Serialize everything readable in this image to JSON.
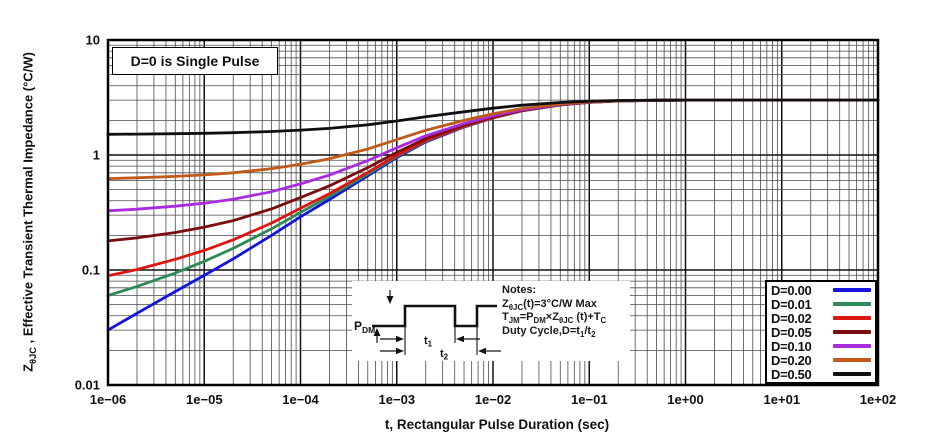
{
  "y_axis": {
    "prefix": "Z",
    "sub": "θJC",
    "rest": " , Effective Transient Thermal Impedance (°C/W)"
  },
  "x_axis": {
    "title": "t, Rectangular Pulse Duration (sec)"
  },
  "annotation": "D=0 is Single Pulse",
  "legend": {
    "items": [
      {
        "label": "D=0.00",
        "color": "#1414de"
      },
      {
        "label": "D=0.01",
        "color": "#2e8b57"
      },
      {
        "label": "D=0.02",
        "color": "#dd1512"
      },
      {
        "label": "D=0.05",
        "color": "#7a0e0e"
      },
      {
        "label": "D=0.10",
        "color": "#a92be0"
      },
      {
        "label": "D=0.20",
        "color": "#c05a1a"
      },
      {
        "label": "D=0.50",
        "color": "#101010"
      }
    ]
  },
  "notes": {
    "title": "Notes:",
    "l1a": "Z",
    "l1asub": "θJC",
    "l1b": "(t)=3°C/W Max",
    "l2a": "T",
    "l2asub": "JM",
    "l2b": "=P",
    "l2bsub": "DM",
    "l2c": "×Z",
    "l2csub": "θJC",
    "l2d": " (t)+T",
    "l2dsub": "C",
    "l3a": "Duty Cycle,D=t",
    "l3asub": "1",
    "l3b": "/t",
    "l3bsub": "2"
  },
  "waveform": {
    "p": "P",
    "p_sub": "DM",
    "t1": "t",
    "t1_sub": "1",
    "t2": "t",
    "t2_sub": "2"
  },
  "chart_data": {
    "type": "line",
    "title": "",
    "xlabel": "t, Rectangular Pulse Duration (sec)",
    "ylabel": "ZθJC, Effective Transient Thermal Impedance (°C/W)",
    "x_scale": "log",
    "y_scale": "log",
    "xlim": [
      1e-06,
      100
    ],
    "ylim": [
      0.01,
      10
    ],
    "x_log_range": [
      -6,
      2
    ],
    "y_log_range": [
      -2,
      1
    ],
    "x_tick_labels": [
      "1e−06",
      "1e−05",
      "1e−04",
      "1e−03",
      "1e−02",
      "1e−01",
      "1e+00",
      "1e+01",
      "1e+02"
    ],
    "y_tick_values": [
      10,
      1,
      0.1,
      0.01
    ],
    "y_tick_labels": [
      "10",
      "1",
      "0.1",
      "0.01"
    ],
    "grid": true,
    "legend_position": "lower right",
    "annotation": "D=0 is Single Pulse",
    "max_value_note": "ZθJC(t)=3°C/W Max",
    "t": [
      1e-06,
      2e-06,
      5e-06,
      1e-05,
      2e-05,
      5e-05,
      0.0001,
      0.0002,
      0.0005,
      0.001,
      0.002,
      0.005,
      0.01,
      0.02,
      0.05,
      0.1,
      0.2,
      0.5,
      1,
      2,
      5,
      10,
      100
    ],
    "series": [
      {
        "name": "D=0.00",
        "duty_cycle": 0.0,
        "color": "#1414de",
        "values": [
          0.03,
          0.042,
          0.065,
          0.09,
          0.125,
          0.2,
          0.29,
          0.41,
          0.66,
          0.95,
          1.3,
          1.75,
          2.1,
          2.42,
          2.72,
          2.87,
          2.95,
          2.99,
          3.0,
          3.0,
          3.0,
          3.0,
          3.0
        ]
      },
      {
        "name": "D=0.01",
        "duty_cycle": 0.01,
        "color": "#2e8b57",
        "values": [
          0.06,
          0.072,
          0.094,
          0.119,
          0.154,
          0.228,
          0.317,
          0.436,
          0.683,
          0.971,
          1.317,
          1.763,
          2.109,
          2.426,
          2.723,
          2.871,
          2.951,
          2.99,
          3.0,
          3.0,
          3.0,
          3.0,
          3.0
        ]
      },
      {
        "name": "D=0.02",
        "duty_cycle": 0.02,
        "color": "#dd1512",
        "values": [
          0.089,
          0.101,
          0.124,
          0.148,
          0.183,
          0.256,
          0.344,
          0.462,
          0.707,
          0.991,
          1.334,
          1.775,
          2.118,
          2.432,
          2.726,
          2.873,
          2.951,
          2.99,
          3.0,
          3.0,
          3.0,
          3.0,
          3.0
        ]
      },
      {
        "name": "D=0.05",
        "duty_cycle": 0.05,
        "color": "#7a0e0e",
        "values": [
          0.179,
          0.19,
          0.212,
          0.236,
          0.269,
          0.34,
          0.426,
          0.54,
          0.777,
          1.053,
          1.385,
          1.813,
          2.145,
          2.449,
          2.734,
          2.877,
          2.953,
          2.991,
          3.0,
          3.0,
          3.0,
          3.0,
          3.0
        ]
      },
      {
        "name": "D=0.10",
        "duty_cycle": 0.1,
        "color": "#a92be0",
        "values": [
          0.327,
          0.338,
          0.359,
          0.381,
          0.413,
          0.48,
          0.561,
          0.669,
          0.894,
          1.155,
          1.47,
          1.875,
          2.19,
          2.478,
          2.748,
          2.883,
          2.955,
          2.991,
          3.0,
          3.0,
          3.0,
          3.0,
          3.0
        ]
      },
      {
        "name": "D=0.20",
        "duty_cycle": 0.2,
        "color": "#c05a1a",
        "values": [
          0.624,
          0.634,
          0.652,
          0.672,
          0.7,
          0.76,
          0.832,
          0.928,
          1.128,
          1.36,
          1.64,
          2.0,
          2.28,
          2.536,
          2.776,
          2.896,
          2.96,
          2.992,
          3.0,
          3.0,
          3.0,
          3.0,
          3.0
        ]
      },
      {
        "name": "D=0.50",
        "duty_cycle": 0.5,
        "color": "#101010",
        "values": [
          1.515,
          1.521,
          1.533,
          1.545,
          1.563,
          1.6,
          1.645,
          1.705,
          1.83,
          1.975,
          2.15,
          2.375,
          2.55,
          2.71,
          2.86,
          2.935,
          2.975,
          2.995,
          3.0,
          3.0,
          3.0,
          3.0,
          3.0
        ]
      }
    ]
  }
}
